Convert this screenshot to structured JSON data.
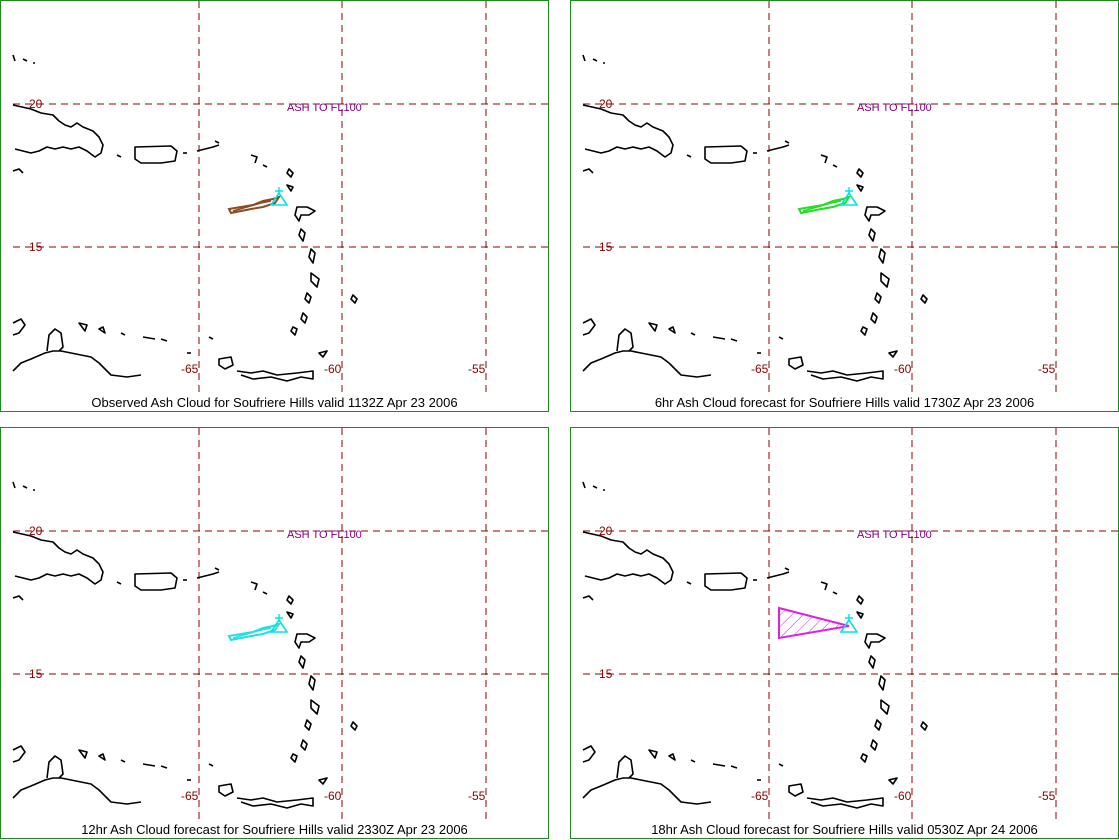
{
  "panels": [
    {
      "caption": "Observed Ash Cloud for Soufriere  Hills valid 1132Z Apr 23 2006",
      "level": "ASH TO FL100",
      "ash_color": "#8b4a22",
      "ash_style": "plume",
      "lat_labels": [
        "20",
        "15"
      ],
      "lon_labels": [
        "-65",
        "-60",
        "-55"
      ]
    },
    {
      "caption": "6hr Ash Cloud forecast for Soufriere  Hills valid 1730Z Apr 23 2006",
      "level": "ASH TO FL100",
      "ash_color": "#22dd22",
      "ash_style": "plume",
      "lat_labels": [
        "20",
        "15"
      ],
      "lon_labels": [
        "-65",
        "-60",
        "-55"
      ]
    },
    {
      "caption": "12hr Ash Cloud forecast for Soufriere  Hills valid 2330Z Apr 23 2006",
      "level": "ASH TO FL100",
      "ash_color": "#22e0e0",
      "ash_style": "plume",
      "lat_labels": [
        "20",
        "15"
      ],
      "lon_labels": [
        "-65",
        "-60",
        "-55"
      ]
    },
    {
      "caption": "18hr Ash Cloud forecast for Soufriere  Hills valid 0530Z Apr 24 2006",
      "level": "ASH TO FL100",
      "ash_color": "#e020e0",
      "ash_style": "hatched-triangle",
      "lat_labels": [
        "20",
        "15"
      ],
      "lon_labels": [
        "-65",
        "-60",
        "-55"
      ]
    }
  ],
  "colors": {
    "grid": "#8b0000",
    "coastline": "#000000",
    "level_text": "#800080",
    "volcano_marker": "#00e5e5",
    "panel_border": "#1a8c1a"
  }
}
